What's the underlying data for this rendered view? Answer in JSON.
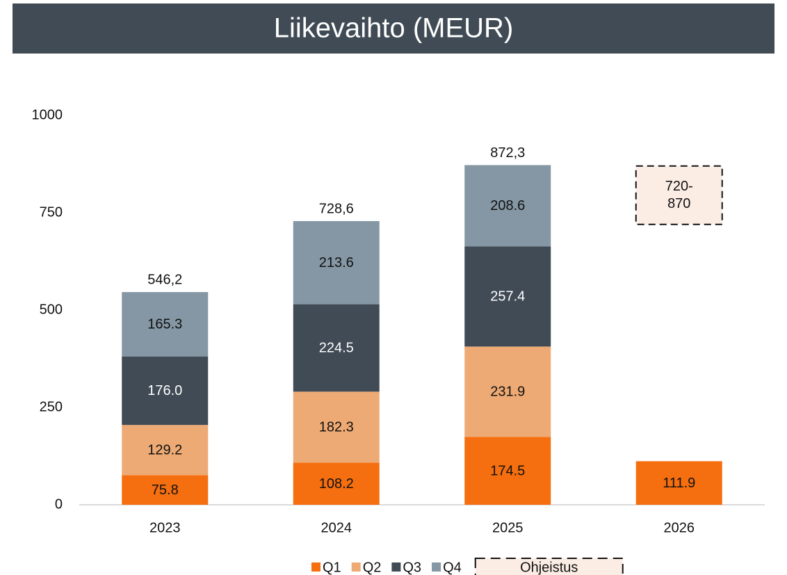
{
  "chart_data": {
    "type": "stacked_bar",
    "title": "Liikevaihto  (MEUR)",
    "categories": [
      "2023",
      "2024",
      "2025",
      "2026"
    ],
    "series": [
      {
        "name": "Q1",
        "color": "#f56e0f",
        "label_color": "#111111",
        "values": [
          75.8,
          108.2,
          174.5,
          111.9
        ]
      },
      {
        "name": "Q2",
        "color": "#eeaa74",
        "label_color": "#111111",
        "values": [
          129.2,
          182.3,
          231.9,
          null
        ]
      },
      {
        "name": "Q3",
        "color": "#404b56",
        "label_color": "#ffffff",
        "values": [
          176.0,
          224.5,
          257.4,
          null
        ],
        "value_labels": [
          "176.0",
          "224.5",
          "257.4",
          null
        ]
      },
      {
        "name": "Q4",
        "color": "#8597a4",
        "label_color": "#111111",
        "values": [
          165.3,
          213.6,
          208.6,
          null
        ]
      }
    ],
    "totals": {
      "values": [
        546.2,
        728.6,
        872.3,
        null
      ],
      "value_labels": [
        "546,2",
        "728,6",
        "872,3",
        null
      ]
    },
    "guidance": {
      "name": "Ohjeistus",
      "category": "2026",
      "color": "#fbede4",
      "values": [
        720,
        870
      ],
      "value_labels": [
        "720-",
        "870"
      ]
    },
    "ylim": [
      0,
      1000
    ],
    "yticks": [
      0,
      250,
      500,
      750,
      1000
    ],
    "grid": false
  }
}
